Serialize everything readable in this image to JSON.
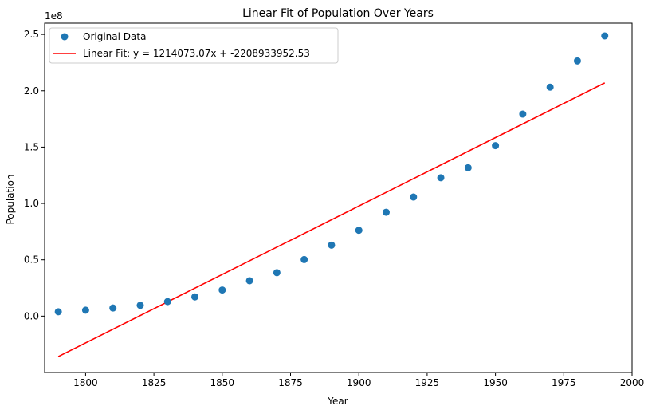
{
  "chart_data": {
    "type": "scatter",
    "title": "Linear Fit of Population Over Years",
    "xlabel": "Year",
    "ylabel": "Population",
    "y_offset_label": "1e8",
    "xlim": [
      1785,
      2000
    ],
    "ylim": [
      -0.5,
      2.6
    ],
    "y_scale_exponent": 8,
    "grid": false,
    "legend_position": "top-left",
    "x_ticks": [
      1800,
      1825,
      1850,
      1875,
      1900,
      1925,
      1950,
      1975,
      2000
    ],
    "x_tick_labels": [
      "1800",
      "1825",
      "1850",
      "1875",
      "1900",
      "1925",
      "1950",
      "1975",
      "2000"
    ],
    "y_ticks": [
      0.0,
      0.5,
      1.0,
      1.5,
      2.0,
      2.5
    ],
    "y_tick_labels": [
      "0.0",
      "0.5",
      "1.0",
      "1.5",
      "2.0",
      "2.5"
    ],
    "series": [
      {
        "name": "Original Data",
        "kind": "scatter",
        "color": "#1f77b4",
        "x": [
          1790,
          1800,
          1810,
          1820,
          1830,
          1840,
          1850,
          1860,
          1870,
          1880,
          1890,
          1900,
          1910,
          1920,
          1930,
          1940,
          1950,
          1960,
          1970,
          1980,
          1990
        ],
        "y": [
          0.039,
          0.053,
          0.072,
          0.096,
          0.129,
          0.171,
          0.232,
          0.314,
          0.386,
          0.502,
          0.63,
          0.762,
          0.922,
          1.057,
          1.228,
          1.317,
          1.513,
          1.793,
          2.032,
          2.265,
          2.487
        ]
      },
      {
        "name": "Linear Fit: y = 1214073.07x + -2208933952.53",
        "kind": "line",
        "color": "#ff0000",
        "x": [
          1790,
          1990
        ],
        "y": [
          -0.359,
          2.07
        ]
      }
    ]
  }
}
